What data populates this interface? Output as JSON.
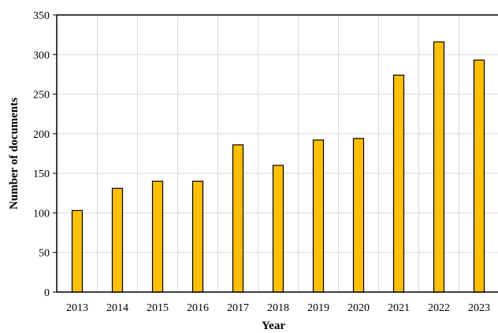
{
  "chart_data": {
    "type": "bar",
    "title": "",
    "xlabel": "Year",
    "ylabel": "Number of documents",
    "categories": [
      "2013",
      "2014",
      "2015",
      "2016",
      "2017",
      "2018",
      "2019",
      "2020",
      "2021",
      "2022",
      "2023"
    ],
    "values": [
      103,
      131,
      140,
      140,
      186,
      160,
      192,
      194,
      274,
      316,
      293
    ],
    "ylim": [
      0,
      350
    ],
    "yticks": [
      0,
      50,
      100,
      150,
      200,
      250,
      300,
      350
    ],
    "grid": true,
    "legend": "none",
    "bar_color": "#FFC000",
    "bar_edge_color": "#000000",
    "grid_color": "#D9D9D9"
  }
}
